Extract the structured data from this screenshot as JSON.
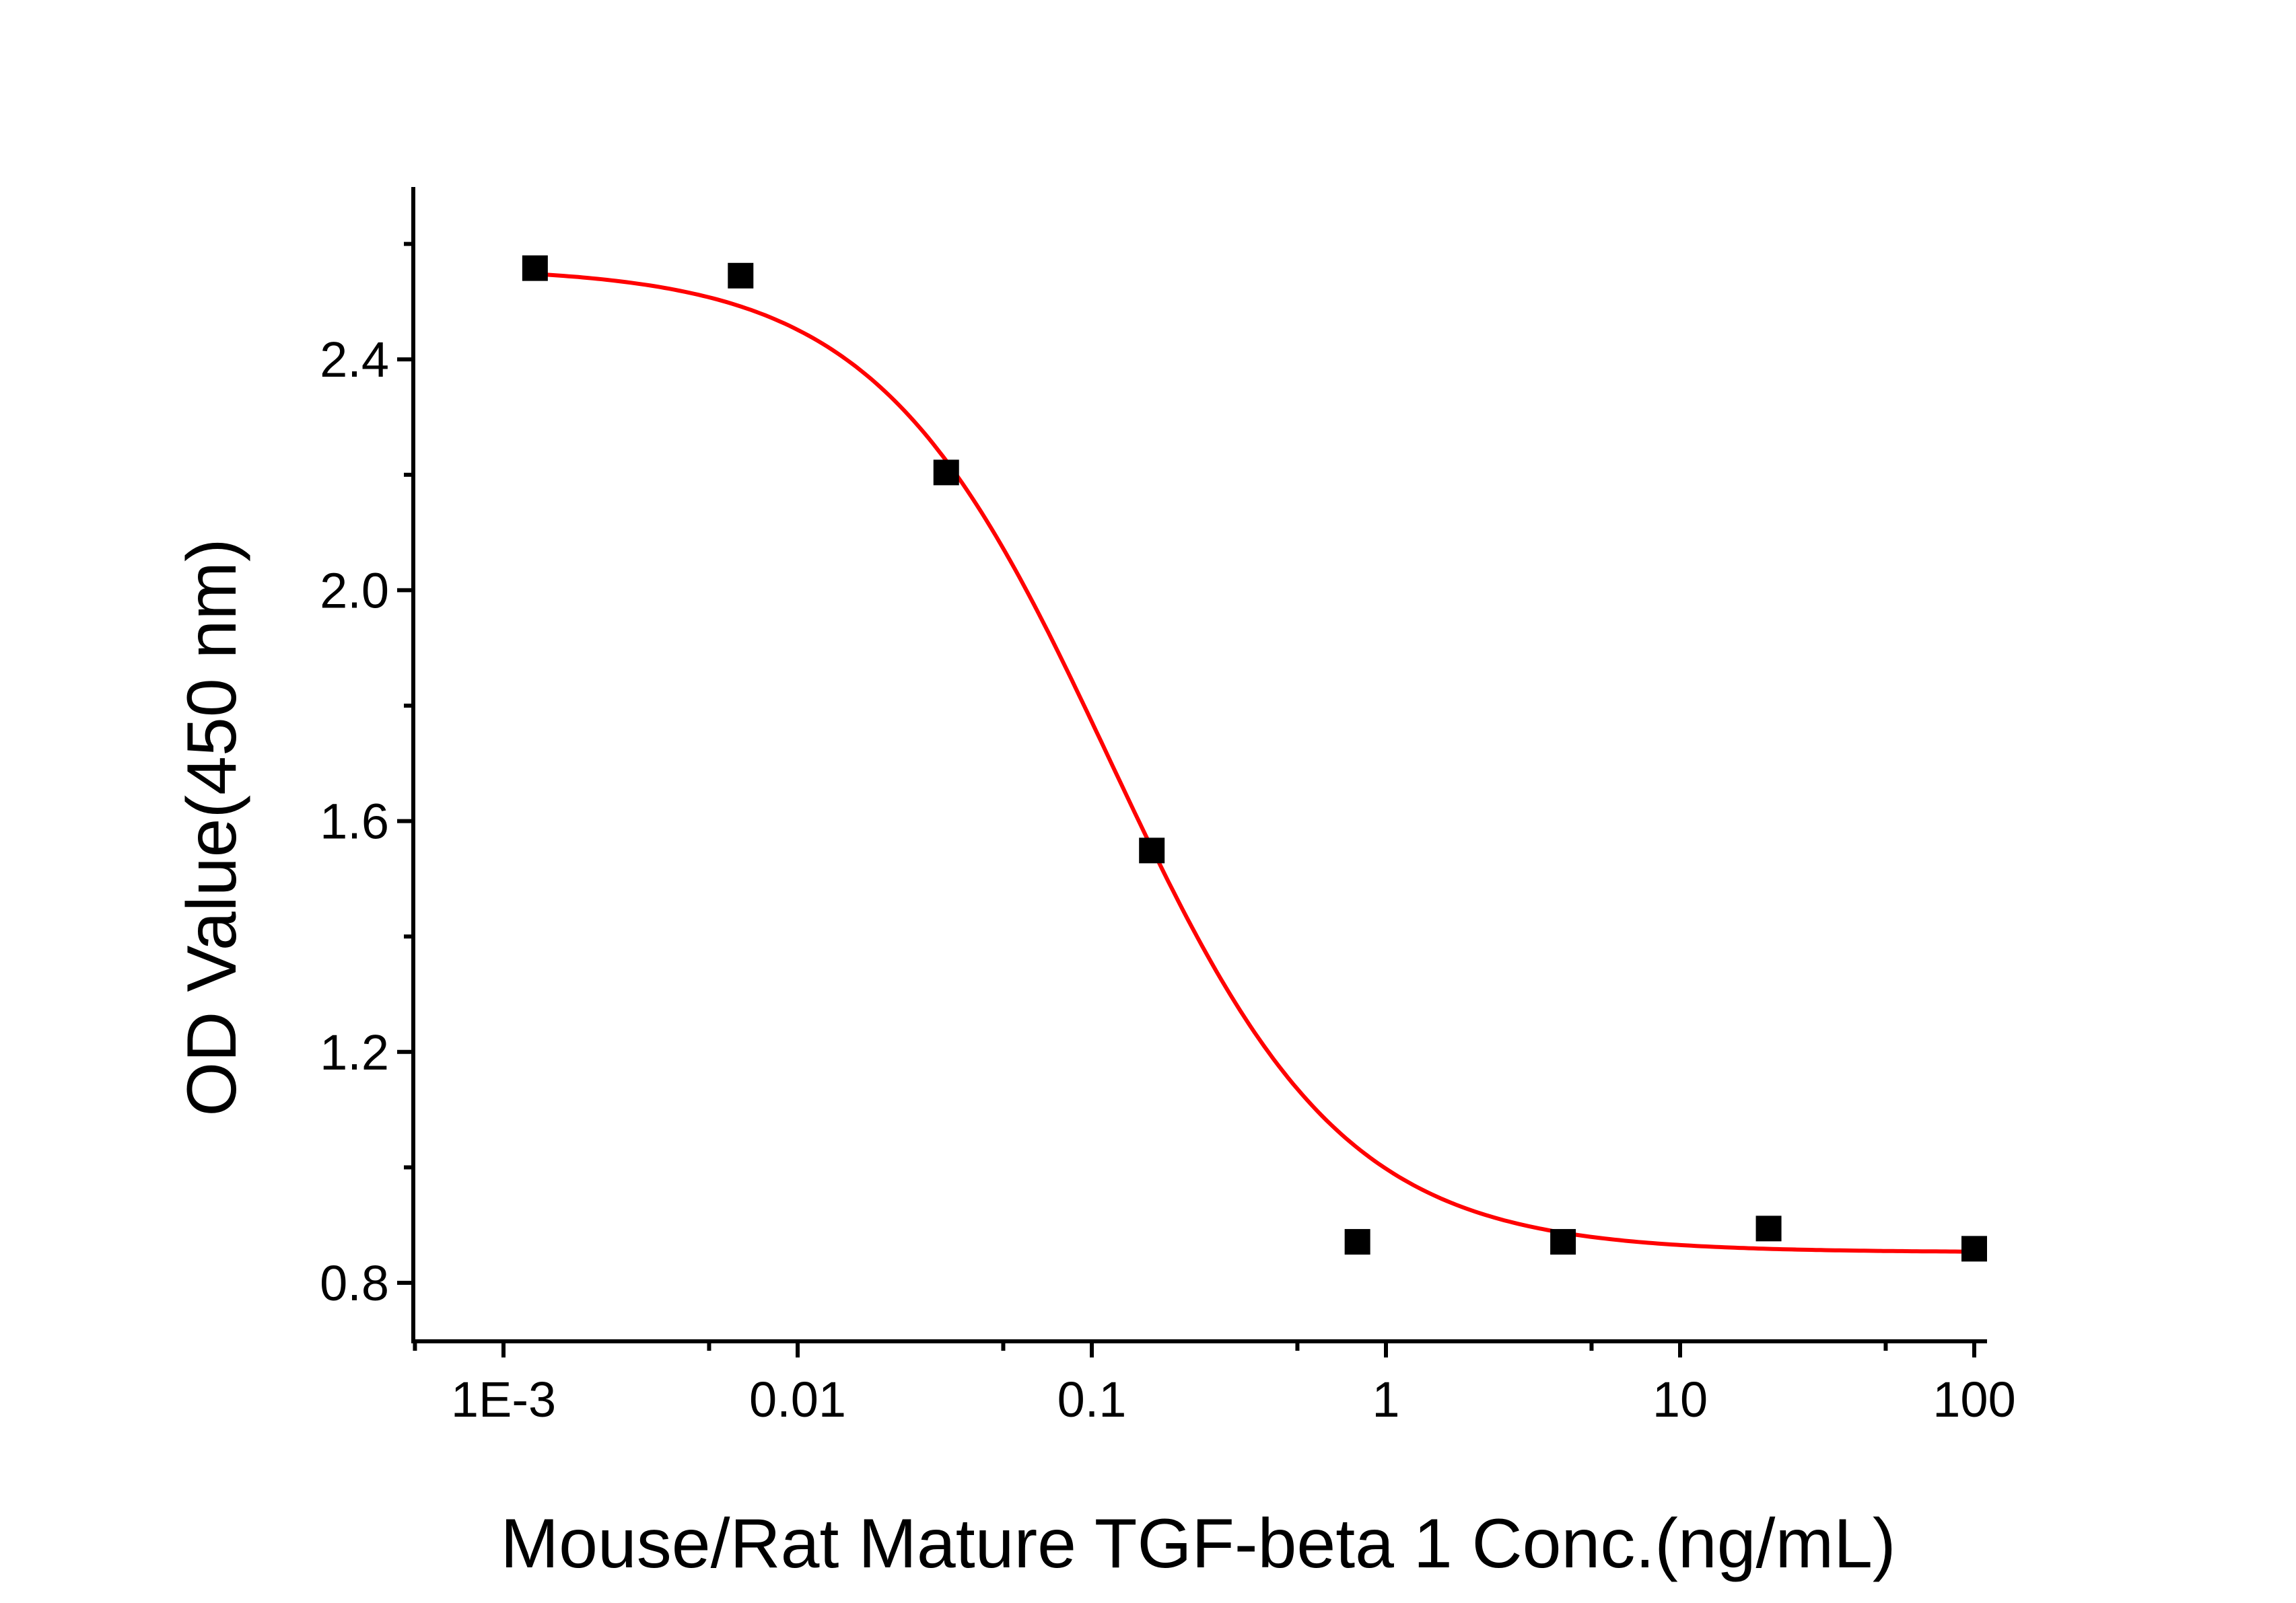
{
  "chart_data": {
    "type": "scatter",
    "title": "",
    "xlabel": "Mouse/Rat Mature TGF-beta 1 Conc.(ng/mL)",
    "ylabel": "OD Value(450 nm)",
    "x_scale": "log",
    "xlim": [
      0.0005,
      120
    ],
    "ylim": [
      0.7,
      2.75
    ],
    "x_ticks": [
      0.001,
      0.01,
      0.1,
      1,
      10,
      100
    ],
    "x_tick_labels": [
      "1E-3",
      "0.01",
      "0.1",
      "1",
      "10",
      "100"
    ],
    "y_ticks": [
      0.8,
      1.2,
      1.6,
      2.0,
      2.4
    ],
    "y_tick_labels": [
      "0.8",
      "1.2",
      "1.6",
      "2.0",
      "2.4"
    ],
    "grid": false,
    "series": [
      {
        "x": [
          0.00128,
          0.0064,
          0.032,
          0.16,
          0.8,
          4,
          20,
          100
        ],
        "y": [
          2.558,
          2.545,
          2.204,
          1.549,
          0.871,
          0.871,
          0.894,
          0.859
        ],
        "marker": "square",
        "color": "#000000"
      }
    ],
    "fit": {
      "model": "4PL",
      "top": 2.56,
      "bottom": 0.853,
      "ec50": 0.115,
      "hill": 1.1,
      "color": "#ff0000"
    }
  }
}
